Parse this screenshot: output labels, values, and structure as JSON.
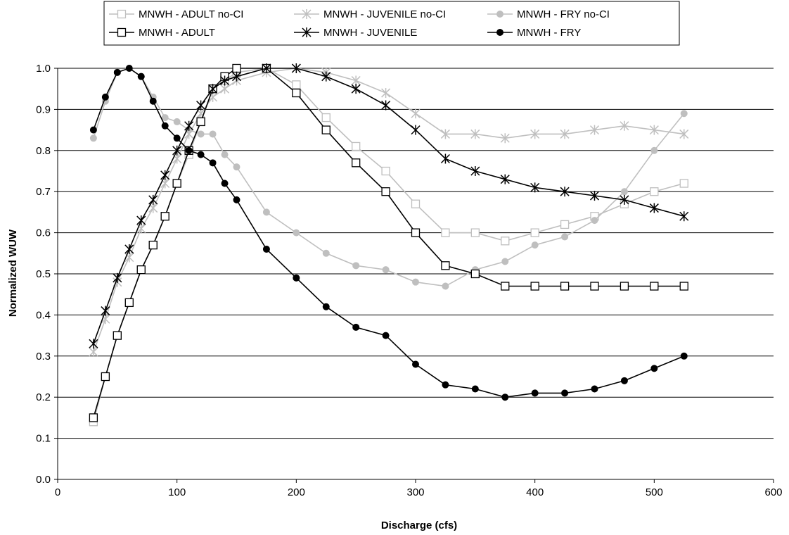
{
  "chart_data": {
    "type": "line",
    "xlabel": "Discharge (cfs)",
    "ylabel": "Normalized WUW",
    "xlim": [
      0,
      600
    ],
    "ylim": [
      0,
      1.0
    ],
    "x_ticks": [
      "0",
      "100",
      "200",
      "300",
      "400",
      "500",
      "600"
    ],
    "y_ticks": [
      "0.0",
      "0.1",
      "0.2",
      "0.3",
      "0.4",
      "0.5",
      "0.6",
      "0.7",
      "0.8",
      "0.9",
      "1.0"
    ],
    "grid": "horizontal",
    "legend_position": "top",
    "series": [
      {
        "name": "MNWH - ADULT no-CI",
        "color": "#bfbfbf",
        "marker": "square-open",
        "x": [
          30,
          40,
          50,
          60,
          70,
          80,
          90,
          100,
          110,
          120,
          130,
          140,
          150,
          175,
          200,
          225,
          250,
          275,
          300,
          325,
          350,
          375,
          400,
          425,
          450,
          475,
          500,
          525
        ],
        "y": [
          0.14,
          0.25,
          0.35,
          0.43,
          0.51,
          0.57,
          0.64,
          0.72,
          0.79,
          0.87,
          0.95,
          0.97,
          0.99,
          1.0,
          0.96,
          0.88,
          0.81,
          0.75,
          0.67,
          0.6,
          0.6,
          0.58,
          0.6,
          0.62,
          0.64,
          0.67,
          0.7,
          0.72
        ]
      },
      {
        "name": "MNWH - JUVENILE no-CI",
        "color": "#bfbfbf",
        "marker": "asterisk",
        "x": [
          30,
          40,
          50,
          60,
          70,
          80,
          90,
          100,
          110,
          120,
          130,
          140,
          150,
          175,
          200,
          225,
          250,
          275,
          300,
          325,
          350,
          375,
          400,
          425,
          450,
          475,
          500,
          525
        ],
        "y": [
          0.31,
          0.39,
          0.48,
          0.54,
          0.61,
          0.66,
          0.72,
          0.78,
          0.84,
          0.89,
          0.93,
          0.95,
          0.97,
          0.99,
          1.0,
          0.99,
          0.97,
          0.94,
          0.89,
          0.84,
          0.84,
          0.83,
          0.84,
          0.84,
          0.85,
          0.86,
          0.85,
          0.84
        ]
      },
      {
        "name": "MNWH - FRY no-CI",
        "color": "#bfbfbf",
        "marker": "circle-filled",
        "x": [
          30,
          40,
          50,
          60,
          70,
          80,
          90,
          100,
          110,
          120,
          130,
          140,
          150,
          175,
          200,
          225,
          250,
          275,
          300,
          325,
          350,
          375,
          400,
          425,
          450,
          475,
          500,
          525
        ],
        "y": [
          0.83,
          0.92,
          0.99,
          1.0,
          0.98,
          0.93,
          0.88,
          0.87,
          0.85,
          0.84,
          0.84,
          0.79,
          0.76,
          0.65,
          0.6,
          0.55,
          0.52,
          0.51,
          0.48,
          0.47,
          0.51,
          0.53,
          0.57,
          0.59,
          0.63,
          0.7,
          0.8,
          0.89
        ]
      },
      {
        "name": "MNWH - ADULT",
        "color": "#000000",
        "marker": "square-open",
        "x": [
          30,
          40,
          50,
          60,
          70,
          80,
          90,
          100,
          110,
          120,
          130,
          140,
          150,
          175,
          200,
          225,
          250,
          275,
          300,
          325,
          350,
          375,
          400,
          425,
          450,
          475,
          500,
          525
        ],
        "y": [
          0.15,
          0.25,
          0.35,
          0.43,
          0.51,
          0.57,
          0.64,
          0.72,
          0.8,
          0.87,
          0.95,
          0.98,
          1.0,
          1.0,
          0.94,
          0.85,
          0.77,
          0.7,
          0.6,
          0.52,
          0.5,
          0.47,
          0.47,
          0.47,
          0.47,
          0.47,
          0.47,
          0.47
        ]
      },
      {
        "name": "MNWH - JUVENILE",
        "color": "#000000",
        "marker": "asterisk",
        "x": [
          30,
          40,
          50,
          60,
          70,
          80,
          90,
          100,
          110,
          120,
          130,
          140,
          150,
          175,
          200,
          225,
          250,
          275,
          300,
          325,
          350,
          375,
          400,
          425,
          450,
          475,
          500,
          525
        ],
        "y": [
          0.33,
          0.41,
          0.49,
          0.56,
          0.63,
          0.68,
          0.74,
          0.8,
          0.86,
          0.91,
          0.95,
          0.97,
          0.98,
          1.0,
          1.0,
          0.98,
          0.95,
          0.91,
          0.85,
          0.78,
          0.75,
          0.73,
          0.71,
          0.7,
          0.69,
          0.68,
          0.66,
          0.64
        ]
      },
      {
        "name": "MNWH - FRY",
        "color": "#000000",
        "marker": "circle-filled",
        "x": [
          30,
          40,
          50,
          60,
          70,
          80,
          90,
          100,
          110,
          120,
          130,
          140,
          150,
          175,
          200,
          225,
          250,
          275,
          300,
          325,
          350,
          375,
          400,
          425,
          450,
          475,
          500,
          525
        ],
        "y": [
          0.85,
          0.93,
          0.99,
          1.0,
          0.98,
          0.92,
          0.86,
          0.83,
          0.8,
          0.79,
          0.77,
          0.72,
          0.68,
          0.56,
          0.49,
          0.42,
          0.37,
          0.35,
          0.28,
          0.23,
          0.22,
          0.2,
          0.21,
          0.21,
          0.22,
          0.24,
          0.27,
          0.3
        ]
      }
    ]
  }
}
